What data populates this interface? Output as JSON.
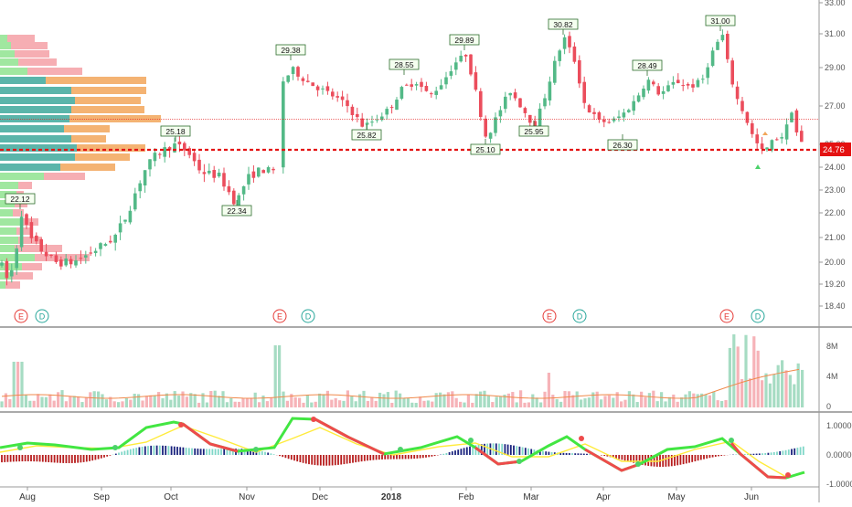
{
  "chart_data": {
    "type": "candlestick",
    "current_price": "24.76",
    "price_axis": {
      "range": [
        17.6,
        33.0
      ],
      "ticks": [
        "18.40",
        "19.20",
        "20.00",
        "21.00",
        "22.00",
        "23.00",
        "24.00",
        "25.00",
        "27.00",
        "29.00",
        "31.00",
        "33.00"
      ]
    },
    "time_axis": {
      "labels": [
        "Aug",
        "Sep",
        "Oct",
        "Nov",
        "Dec",
        "2018",
        "Feb",
        "Mar",
        "Apr",
        "May",
        "Jun"
      ]
    },
    "price_annotations": [
      "22.12",
      "25.18",
      "22.34",
      "29.38",
      "25.82",
      "28.55",
      "29.89",
      "25.10",
      "30.82",
      "25.95",
      "28.49",
      "26.30",
      "31.00"
    ],
    "event_markers": [
      {
        "type": "E"
      },
      {
        "type": "D"
      },
      {
        "type": "E"
      },
      {
        "type": "D"
      },
      {
        "type": "E"
      },
      {
        "type": "D"
      },
      {
        "type": "E"
      },
      {
        "type": "D"
      }
    ],
    "volume_axis": {
      "ticks": [
        "8M",
        "4M",
        "0"
      ]
    },
    "oscillator_axis": {
      "ticks": [
        "1.0000",
        "0.0000",
        "-1.0000"
      ]
    },
    "colors": {
      "up": "#53b987",
      "down": "#eb4d5c",
      "current_line": "#e41212",
      "vp_up_strong": "#3ea89b",
      "vp_down_strong": "#f2a65a",
      "vp_up_light": "#8fe38f",
      "vp_down_light": "#f4a0a6",
      "macd_fast": "#42e642",
      "macd_slow": "#ffeb3b",
      "macd_fast_down": "#ee4b4b"
    }
  }
}
